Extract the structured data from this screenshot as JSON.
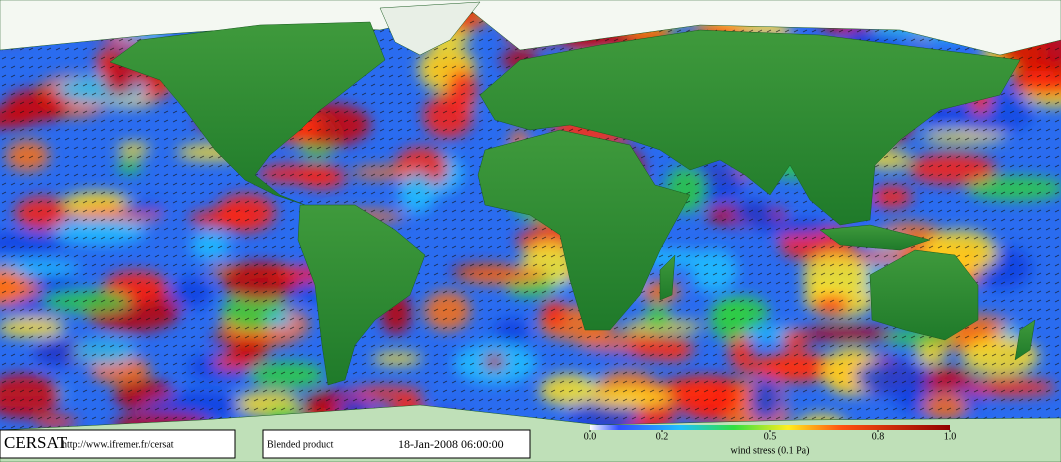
{
  "footer": {
    "logo": "CERSAT",
    "url": "http://www.ifremer.fr/cersat",
    "product": "Blended product",
    "date": "18-Jan-2008 06:00:00"
  },
  "colorbar": {
    "lim": [
      0,
      1
    ],
    "ticks": [
      {
        "value": 0,
        "label": "0.0"
      },
      0.2,
      0.5,
      0.8,
      {
        "value": 1,
        "label": "1.0"
      }
    ],
    "label": "wind stress (0.1 Pa)"
  }
}
